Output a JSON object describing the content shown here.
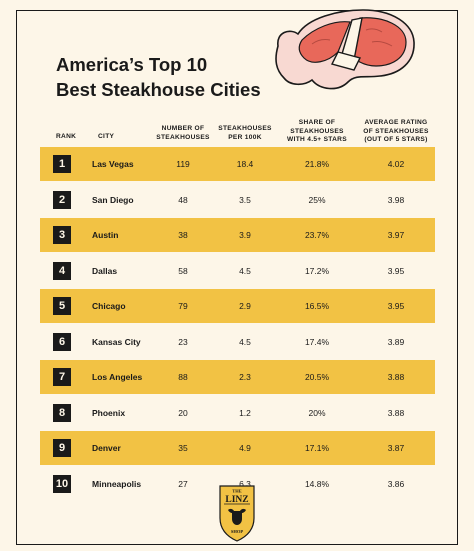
{
  "chart_data": {
    "type": "table",
    "title": [
      "America’s Top 10",
      "Best Steakhouse Cities"
    ],
    "columns": [
      "RANK",
      "CITY",
      "NUMBER OF STEAKHOUSES",
      "STEAKHOUSES PER 100K",
      "SHARE OF STEAKHOUSES WITH 4.5+ STARS",
      "AVERAGE RATING OF STEAKHOUSES (OUT OF 5 STARS)"
    ],
    "header_lines": [
      [
        "RANK"
      ],
      [
        "CITY"
      ],
      [
        "NUMBER OF",
        "STEAKHOUSES"
      ],
      [
        "STEAKHOUSES",
        "PER 100K"
      ],
      [
        "SHARE OF",
        "STEAKHOUSES",
        "WITH 4.5+ STARS"
      ],
      [
        "AVERAGE RATING",
        "OF STEAKHOUSES",
        "(OUT OF 5 STARS)"
      ]
    ],
    "rows": [
      {
        "rank": "1",
        "city": "Las Vegas",
        "count": "119",
        "per100k": "18.4",
        "share": "21.8%",
        "rating": "4.02"
      },
      {
        "rank": "2",
        "city": "San Diego",
        "count": "48",
        "per100k": "3.5",
        "share": "25%",
        "rating": "3.98"
      },
      {
        "rank": "3",
        "city": "Austin",
        "count": "38",
        "per100k": "3.9",
        "share": "23.7%",
        "rating": "3.97"
      },
      {
        "rank": "4",
        "city": "Dallas",
        "count": "58",
        "per100k": "4.5",
        "share": "17.2%",
        "rating": "3.95"
      },
      {
        "rank": "5",
        "city": "Chicago",
        "count": "79",
        "per100k": "2.9",
        "share": "16.5%",
        "rating": "3.95"
      },
      {
        "rank": "6",
        "city": "Kansas City",
        "count": "23",
        "per100k": "4.5",
        "share": "17.4%",
        "rating": "3.89"
      },
      {
        "rank": "7",
        "city": "Los Angeles",
        "count": "88",
        "per100k": "2.3",
        "share": "20.5%",
        "rating": "3.88"
      },
      {
        "rank": "8",
        "city": "Phoenix",
        "count": "20",
        "per100k": "1.2",
        "share": "20%",
        "rating": "3.88"
      },
      {
        "rank": "9",
        "city": "Denver",
        "count": "35",
        "per100k": "4.9",
        "share": "17.1%",
        "rating": "3.87"
      },
      {
        "rank": "10",
        "city": "Minneapolis",
        "count": "27",
        "per100k": "6.3",
        "share": "14.8%",
        "rating": "3.86"
      }
    ],
    "highlight_color": "#f2c244",
    "background_color": "#fdf6e8",
    "text_color": "#1a1a1a"
  },
  "logo": {
    "top": "THE",
    "name": "LINZ",
    "bottom": "SHOP",
    "icon": "steer-head-shield-logo"
  },
  "illustration": {
    "icon": "t-bone-steak-icon",
    "meat_color": "#e8685a",
    "fat_color": "#f8d9d2"
  }
}
